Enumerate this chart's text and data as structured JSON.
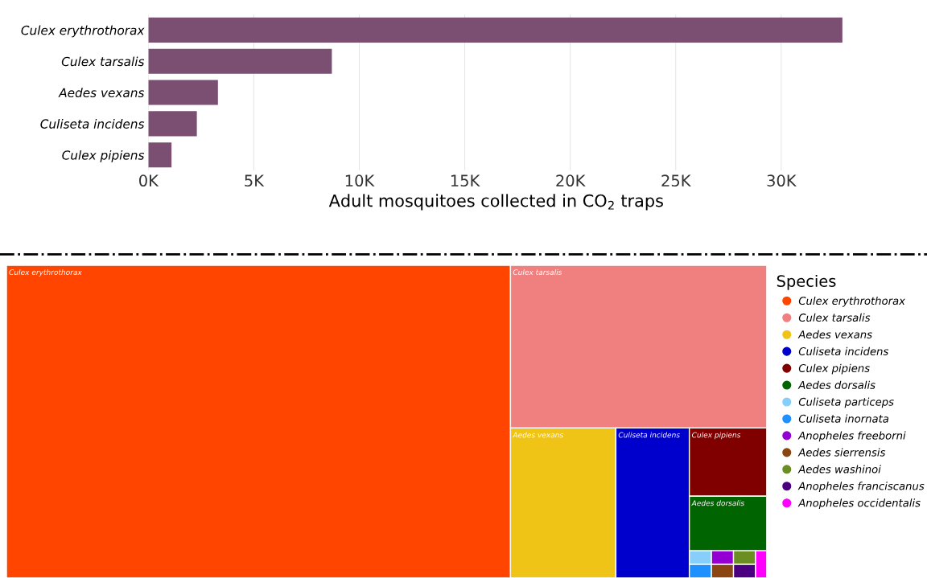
{
  "chart_data": [
    {
      "type": "bar",
      "orientation": "horizontal",
      "xlabel": "Adult mosquitoes collected in CO$_{2}$ traps",
      "categories": [
        "Culex erythrothorax",
        "Culex tarsalis",
        "Aedes vexans",
        "Culiseta incidens",
        "Culex pipiens"
      ],
      "values": [
        32900,
        8700,
        3300,
        2300,
        1100
      ],
      "color": "#7b4f71",
      "xlim": [
        0,
        33000
      ],
      "xticks": [
        {
          "value": 0,
          "label": "0K"
        },
        {
          "value": 5000,
          "label": "5K"
        },
        {
          "value": 10000,
          "label": "10K"
        },
        {
          "value": 15000,
          "label": "15K"
        },
        {
          "value": 20000,
          "label": "20K"
        },
        {
          "value": 25000,
          "label": "25K"
        },
        {
          "value": 30000,
          "label": "30K"
        }
      ],
      "grid": "x"
    },
    {
      "type": "other",
      "legend_title": "Species",
      "categories": [
        "Culex erythrothorax",
        "Culex tarsalis",
        "Aedes vexans",
        "Culiseta incidens",
        "Culex pipiens",
        "Aedes dorsalis",
        "Culiseta particeps",
        "Culiseta inornata",
        "Anopheles freeborni",
        "Aedes sierrensis",
        "Aedes washinoi",
        "Anopheles franciscanus",
        "Anopheles occidentalis"
      ],
      "annotations": [
        "Culex erythrothorax",
        "Culex tarsalis",
        "Aedes vexans",
        "Culiseta incidens",
        "Culex pipiens",
        "Aedes dorsalis"
      ],
      "colors": [
        "#ff4500",
        "#f08080",
        "#efc417",
        "#0000cd",
        "#800000",
        "#006400",
        "#87cefa",
        "#1e90ff",
        "#9400d3",
        "#8b4513",
        "#6b8e23",
        "#4b0082",
        "#ff00ff"
      ]
    }
  ]
}
